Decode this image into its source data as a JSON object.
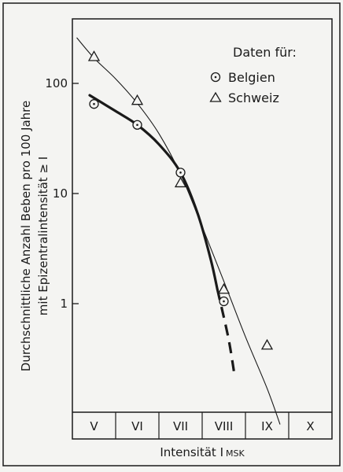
{
  "chart_data": {
    "type": "scatter",
    "title": "",
    "xlabel": "Intensität I",
    "xlabel_subscript": "MSK",
    "ylabel_line1": "Durchschnittliche Anzahl Beben pro 100 Jahre",
    "ylabel_line2": "mit Epizentralintensität ≥ I",
    "yscale": "log",
    "ylim": [
      0.1,
      1000
    ],
    "y_ticks": [
      {
        "value": 1,
        "label": "1"
      },
      {
        "value": 10,
        "label": "10"
      },
      {
        "value": 100,
        "label": "100"
      }
    ],
    "categories": [
      "V",
      "VI",
      "VII",
      "VIII",
      "IX",
      "X"
    ],
    "legend_title": "Daten für:",
    "legend_position": "top-right",
    "grid": false,
    "series": [
      {
        "name": "Belgien",
        "marker": "circle-dot",
        "points": [
          {
            "x": 5,
            "y": 65
          },
          {
            "x": 6,
            "y": 42
          },
          {
            "x": 7,
            "y": 15.5
          },
          {
            "x": 8,
            "y": 1.05
          }
        ],
        "fit_curve": [
          {
            "x": 4.9,
            "y": 78
          },
          {
            "x": 5.5,
            "y": 56
          },
          {
            "x": 6,
            "y": 42
          },
          {
            "x": 6.5,
            "y": 28
          },
          {
            "x": 7,
            "y": 15.5
          },
          {
            "x": 7.4,
            "y": 6.5
          },
          {
            "x": 7.7,
            "y": 2.5
          },
          {
            "x": 7.85,
            "y": 1.35
          }
        ],
        "fit_extrapolated": [
          {
            "x": 7.85,
            "y": 1.35
          },
          {
            "x": 8.1,
            "y": 0.5
          },
          {
            "x": 8.25,
            "y": 0.22
          }
        ]
      },
      {
        "name": "Schweiz",
        "marker": "triangle",
        "points": [
          {
            "x": 5,
            "y": 175
          },
          {
            "x": 6,
            "y": 70
          },
          {
            "x": 7,
            "y": 12.5
          },
          {
            "x": 8,
            "y": 1.35
          },
          {
            "x": 9,
            "y": 0.42
          }
        ],
        "fit_curve": [
          {
            "x": 4.6,
            "y": 260
          },
          {
            "x": 5,
            "y": 170
          },
          {
            "x": 5.5,
            "y": 110
          },
          {
            "x": 6,
            "y": 66
          },
          {
            "x": 6.5,
            "y": 35
          },
          {
            "x": 7,
            "y": 15
          },
          {
            "x": 7.5,
            "y": 5
          },
          {
            "x": 8,
            "y": 1.6
          },
          {
            "x": 8.5,
            "y": 0.5
          },
          {
            "x": 9,
            "y": 0.17
          },
          {
            "x": 9.3,
            "y": 0.08
          }
        ]
      }
    ]
  }
}
